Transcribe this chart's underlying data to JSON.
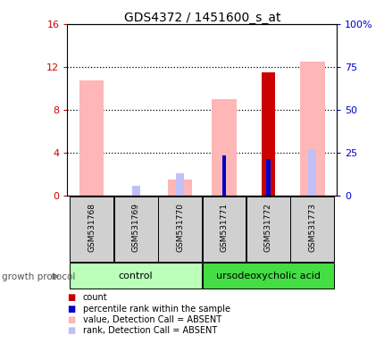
{
  "title": "GDS4372 / 1451600_s_at",
  "samples": [
    "GSM531768",
    "GSM531769",
    "GSM531770",
    "GSM531771",
    "GSM531772",
    "GSM531773"
  ],
  "ylim_left": [
    0,
    16
  ],
  "ylim_right": [
    0,
    100
  ],
  "yticks_left": [
    0,
    4,
    8,
    12,
    16
  ],
  "yticks_right": [
    0,
    25,
    50,
    75,
    100
  ],
  "ytick_labels_right": [
    "0",
    "25",
    "50",
    "75",
    "100%"
  ],
  "value_absent": [
    10.7,
    0.0,
    1.5,
    9.0,
    0.0,
    12.5
  ],
  "rank_absent": [
    0.0,
    0.9,
    2.1,
    0.0,
    0.0,
    4.2
  ],
  "count": [
    0.0,
    0.0,
    0.0,
    0.0,
    11.5,
    0.0
  ],
  "percentile_rank": [
    0.0,
    0.0,
    0.0,
    3.7,
    3.4,
    0.0
  ],
  "color_value_absent": "#ffb6b6",
  "color_rank_absent": "#c0c0f8",
  "color_count": "#cc0000",
  "color_percentile": "#0000cc",
  "groups": [
    {
      "label": "control",
      "samples": [
        0,
        1,
        2
      ],
      "color": "#bbffbb"
    },
    {
      "label": "ursodeoxycholic acid",
      "samples": [
        3,
        4,
        5
      ],
      "color": "#44dd44"
    }
  ],
  "group_protocol_label": "growth protocol",
  "legend_items": [
    {
      "label": "count",
      "color": "#cc0000"
    },
    {
      "label": "percentile rank within the sample",
      "color": "#0000cc"
    },
    {
      "label": "value, Detection Call = ABSENT",
      "color": "#ffb6b6"
    },
    {
      "label": "rank, Detection Call = ABSENT",
      "color": "#c0c0f8"
    }
  ],
  "bg_color": "#ffffff",
  "tick_label_color_left": "#cc0000",
  "tick_label_color_right": "#0000cc",
  "grid_dotted_at": [
    4,
    8,
    12
  ],
  "sample_box_color": "#d0d0d0",
  "arrow_color": "#888888"
}
